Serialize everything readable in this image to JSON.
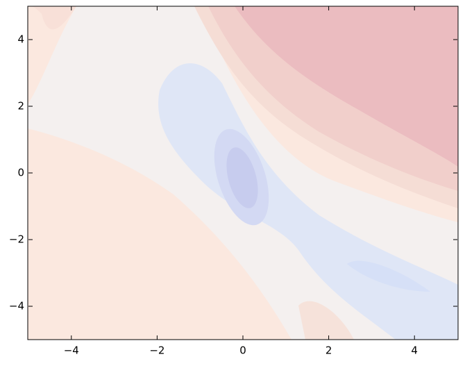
{
  "chart_data": {
    "type": "contour",
    "xlim": [
      -5,
      5
    ],
    "ylim": [
      -5,
      5
    ],
    "xticks": [
      {
        "value": -4,
        "label": "−4"
      },
      {
        "value": -2,
        "label": "−2"
      },
      0,
      2,
      4
    ],
    "yticks": [
      {
        "value": -4,
        "label": "−4"
      },
      {
        "value": -2,
        "label": "−2"
      },
      0,
      2,
      4
    ]
  }
}
